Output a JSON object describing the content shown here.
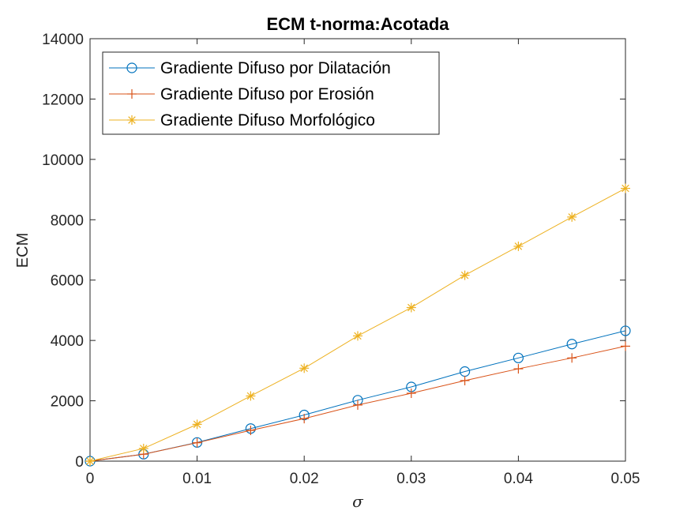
{
  "chart_data": {
    "type": "line",
    "title": "ECM t-norma:Acotada",
    "xlabel": "σ",
    "ylabel": "ECM",
    "xlim": [
      0,
      0.05
    ],
    "ylim": [
      0,
      14000
    ],
    "xticks": [
      0,
      0.01,
      0.02,
      0.03,
      0.04,
      0.05
    ],
    "xtick_labels": [
      "0",
      "0.01",
      "0.02",
      "0.03",
      "0.04",
      "0.05"
    ],
    "yticks": [
      0,
      2000,
      4000,
      6000,
      8000,
      10000,
      12000,
      14000
    ],
    "ytick_labels": [
      "0",
      "2000",
      "4000",
      "6000",
      "8000",
      "10000",
      "12000",
      "14000"
    ],
    "grid": false,
    "legend_position": "top-left",
    "x": [
      0,
      0.005,
      0.01,
      0.015,
      0.02,
      0.025,
      0.03,
      0.035,
      0.04,
      0.045,
      0.05
    ],
    "series": [
      {
        "name": "Gradiente Difuso por Dilatación",
        "color": "#0072BD",
        "marker": "circle",
        "values": [
          0,
          230,
          620,
          1080,
          1530,
          2020,
          2460,
          2970,
          3420,
          3880,
          4320
        ]
      },
      {
        "name": "Gradiente Difuso por Erosión",
        "color": "#D95319",
        "marker": "plus",
        "values": [
          0,
          230,
          610,
          1020,
          1410,
          1860,
          2250,
          2670,
          3060,
          3420,
          3810
        ]
      },
      {
        "name": "Gradiente Difuso Morfológico",
        "color": "#EDB120",
        "marker": "asterisk",
        "values": [
          0,
          420,
          1220,
          2160,
          3080,
          4150,
          5090,
          6160,
          7120,
          8090,
          9040
        ]
      }
    ]
  }
}
